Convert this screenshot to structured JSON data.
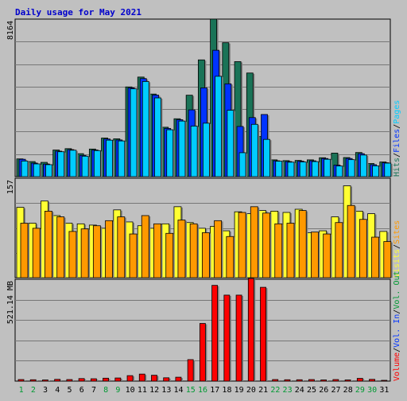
{
  "chart_data": {
    "type": "bar",
    "title": "Daily usage for May 2021",
    "colors": {
      "background": "#c0c0c0",
      "hits": "#1a7357",
      "files": "#0033ff",
      "pages": "#00ccff",
      "visits": "#ffff33",
      "sites": "#ff9900",
      "volume": "#ff0000",
      "title": "#0000cc",
      "weekend_day": "#009933",
      "weekday": "#000000"
    },
    "days": [
      "1",
      "2",
      "3",
      "4",
      "5",
      "6",
      "7",
      "8",
      "9",
      "10",
      "11",
      "12",
      "13",
      "14",
      "15",
      "16",
      "17",
      "18",
      "19",
      "20",
      "21",
      "22",
      "23",
      "24",
      "25",
      "26",
      "27",
      "28",
      "29",
      "30",
      "31"
    ],
    "weekend_days": [
      "1",
      "2",
      "8",
      "9",
      "15",
      "16",
      "22",
      "23",
      "29",
      "30"
    ],
    "panels": [
      {
        "name": "hits-files-pages",
        "ymax_label": "8164",
        "ymax": 8164,
        "series": [
          {
            "name": "Hits",
            "color": "#1a7357",
            "values": [
              920,
              780,
              740,
              1380,
              1450,
              1190,
              1430,
              2000,
              1960,
              4650,
              5160,
              4280,
              2560,
              3000,
              4220,
              6050,
              8164,
              6940,
              5960,
              5370,
              2080,
              870,
              830,
              840,
              870,
              980,
              1220,
              990,
              1250,
              680,
              760
            ]
          },
          {
            "name": "Files",
            "color": "#0033ff",
            "values": [
              900,
              700,
              650,
              1320,
              1400,
              1100,
              1380,
              1950,
              1900,
              4600,
              5080,
              4230,
              2500,
              2950,
              3460,
              4600,
              6550,
              4810,
              2600,
              3060,
              3220,
              820,
              780,
              800,
              820,
              940,
              600,
              940,
              1190,
              620,
              720
            ]
          },
          {
            "name": "Pages",
            "color": "#00ccff",
            "values": [
              810,
              660,
              620,
              1290,
              1370,
              1060,
              1350,
              1890,
              1850,
              4550,
              4930,
              4080,
              2430,
              2880,
              2620,
              2770,
              5200,
              3440,
              1240,
              2710,
              1930,
              800,
              750,
              760,
              780,
              900,
              550,
              880,
              1120,
              560,
              700
            ]
          }
        ],
        "right_label": [
          {
            "text": "Hits",
            "color": "#1a7357"
          },
          {
            "text": "Files",
            "color": "#0033ff"
          },
          {
            "text": "Pages",
            "color": "#00ccff"
          }
        ]
      },
      {
        "name": "visits-sites",
        "ymax_label": "157",
        "ymax": 157,
        "series": [
          {
            "name": "Visits",
            "color": "#ffff33",
            "values": [
              111,
              86,
              121,
              98,
              86,
              85,
              83,
              78,
              107,
              88,
              82,
              78,
              85,
              112,
              87,
              78,
              81,
              74,
              104,
              101,
              106,
              105,
              103,
              108,
              71,
              74,
              96,
              145,
              105,
              101,
              73
            ]
          },
          {
            "name": "Sites",
            "color": "#ff9900",
            "values": [
              86,
              78,
              105,
              96,
              73,
              77,
              82,
              90,
              96,
              69,
              98,
              85,
              70,
              91,
              85,
              71,
              90,
              65,
              103,
              112,
              102,
              85,
              86,
              106,
              72,
              69,
              87,
              114,
              92,
              64,
              57
            ]
          }
        ],
        "right_label": [
          {
            "text": "Visits",
            "color": "#ffff33"
          },
          {
            "text": "Sites",
            "color": "#ff9900"
          }
        ]
      },
      {
        "name": "volume",
        "ymax_label": "521.14 MB",
        "ymax": 521.14,
        "series": [
          {
            "name": "Volume",
            "color": "#ff0000",
            "values": [
              8,
              7,
              6,
              9,
              8,
              13,
              12,
              15,
              16,
              28,
              36,
              30,
              17,
              20,
              110,
              295,
              490,
              440,
              440,
              525,
              480,
              8,
              7,
              7,
              8,
              6,
              8,
              6,
              14,
              9,
              4
            ]
          }
        ],
        "right_label": [
          {
            "text": "Volume",
            "color": "#ff0000"
          },
          {
            "text": "Vol. In",
            "color": "#0033ff"
          },
          {
            "text": "Vol. Out",
            "color": "#009933"
          }
        ]
      }
    ],
    "right_separator": "/",
    "grid": true,
    "legend_position": "right (vertical text)"
  }
}
